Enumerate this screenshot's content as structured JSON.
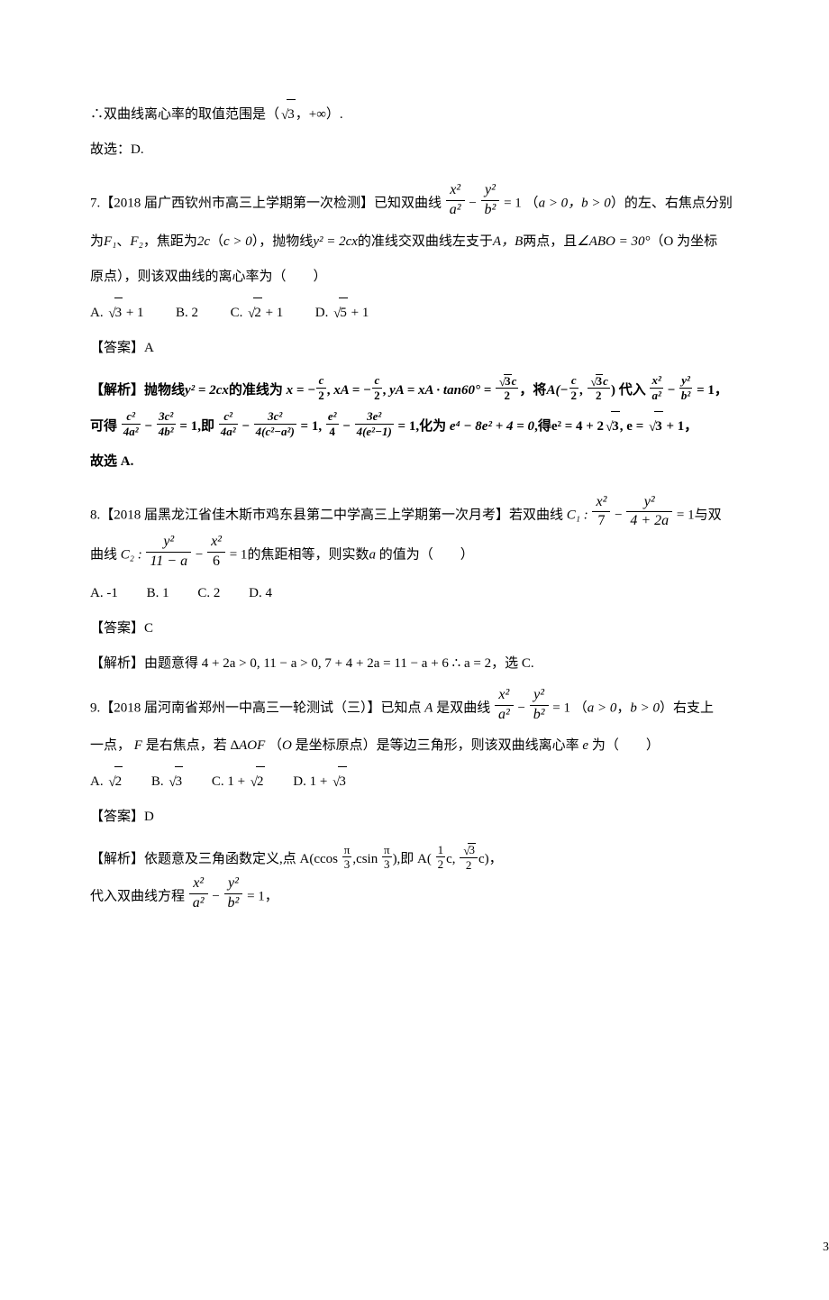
{
  "line_conclusion": {
    "prefix": "∴双曲线离心率的取值范围是（",
    "value": "3",
    "mid": "，+∞）.",
    "answer_line": "故选：D."
  },
  "q7": {
    "head_a": "7.【2018 届广西钦州市高三上学期第一次检测】已知双曲线",
    "head_b": "（",
    "cond": "a > 0，b > 0",
    "head_c": "）的左、右焦点分别",
    "line2_a": "为",
    "line2_b": "，焦距为",
    "line2_c": "（",
    "line2_d": "c > 0",
    "line2_e": "），抛物线",
    "line2_f": "的准线交双曲线左支于",
    "line2_g": "两点，且",
    "line2_h": "∠ABO = 30°",
    "line2_i": "（O 为坐标",
    "line3": "原点），则该双曲线的离心率为（　　）",
    "parabola": "y² = 2cx",
    "F1": "F₁",
    "F2": "F₂",
    "twoc": "2c",
    "AB": "A，B",
    "optA_pre": "A. ",
    "optA_rad": "3",
    "optA_post": " + 1",
    "optB": "B.  2",
    "optC_pre": "C. ",
    "optC_rad": "2",
    "optC_post": " + 1",
    "optD_pre": "D. ",
    "optD_rad": "5",
    "optD_post": " + 1",
    "answer": "【答案】A",
    "sol1_a": "【解析】抛物线",
    "sol1_b": "y² = 2cx",
    "sol1_c": "的准线为",
    "sol1_xeq": "x = −",
    "sol1_xa": "xA = −",
    "sol1_ya_pre": "yA = xA · tan60° =",
    "sol1_ya_rad": "3",
    "sol1_ya_c": "c",
    "sol1_sub_pre": "，将",
    "sol1_A_label_pre": "A(−",
    "sol1_A_label_mid": ",",
    "sol1_A_rad": "3",
    "sol1_A_c": "c",
    "sol1_sub_post": ") 代入",
    "sol1_hyp_eq": " = 1，",
    "sol2_a": "可得",
    "sol2_eq1_rhs": " = 1,即",
    "sol2_eq2_rhs": " = 1,",
    "sol2_eq3_rhs": " = 1,化为",
    "sol2_poly": "e⁴ − 8e² + 4 = 0",
    "sol2_res_pre": ",得e² = 4 + 2",
    "sol2_res_rad": "3",
    "sol2_res_mid": ", e = ",
    "sol2_res_rad2": "3",
    "sol2_res_post": " + 1，",
    "sol3": "故选 A."
  },
  "q8": {
    "head_a": "8.【2018 届黑龙江省佳木斯市鸡东县第二中学高三上学期第一次月考】若双曲线",
    "C1_label": "C₁ : ",
    "eq1_rhs": " = 1",
    "head_b": "与双",
    "line2_a": "曲线",
    "C2_label": "C₂ : ",
    "eq2_rhs": " = 1",
    "line2_b": "的焦距相等，则实数",
    "a_it": "a",
    "line2_c": " 的值为（　　）",
    "optA": "A. -1",
    "optB": "B.  1",
    "optC": "C.  2",
    "optD": "D.  4",
    "answer": "【答案】C",
    "sol": "【解析】由题意得 4 + 2a > 0, 11 − a > 0, 7 + 4 + 2a = 11 − a + 6 ∴ a = 2，选 C."
  },
  "q9": {
    "head_a": "9.【2018 届河南省郑州一中高三一轮测试（三）】已知点",
    "A_it": "A",
    "head_b": " 是双曲线",
    "cond_a": "（",
    "cond_b": "a > 0",
    "cond_c": "，",
    "cond_d": "b > 0",
    "cond_e": "）右支上",
    "line2_a": "一点， ",
    "F_it": "F",
    "line2_b": " 是右焦点，若 Δ",
    "AOF": "AOF",
    "line2_c": " （",
    "O_it": "O",
    "line2_d": " 是坐标原点）是等边三角形，则该双曲线离心率 ",
    "e_it": "e",
    "line2_e": " 为（　　）",
    "optA_pre": "A.  ",
    "optA_rad": "2",
    "optB_pre": "B.  ",
    "optB_rad": "3",
    "optC_pre": "C.  1 + ",
    "optC_rad": "2",
    "optD_pre": "D.  1 + ",
    "optD_rad": "3",
    "answer": "【答案】D",
    "sol1_a": "【解析】依题意及三角函数定义,点 A(ccos",
    "sol1_b": ",csin",
    "sol1_c": "),即 A(",
    "sol1_d": "c, ",
    "sol1_e": "c)，",
    "pi": "π",
    "three": "3",
    "one": "1",
    "two": "2",
    "sq3": "3",
    "sol2_a": "代入双曲线方程",
    "sol2_b": " = 1，"
  },
  "pagenum": "3",
  "frac": {
    "x2": "x²",
    "y2": "y²",
    "a2": "a²",
    "b2": "b²",
    "c": "c",
    "two": "2",
    "c2": "c²",
    "three_c2": "3c²",
    "four_a2": "4a²",
    "four_b2": "4b²",
    "four_c2a2": "4(c²−a²)",
    "e2": "e²",
    "three_e2": "3e²",
    "four": "4",
    "four_e1": "4(e²−1)",
    "seven": "7",
    "fourp2a": "4 + 2a",
    "elevenma": "11 − a",
    "six": "6",
    "sqrt3c": "3"
  }
}
